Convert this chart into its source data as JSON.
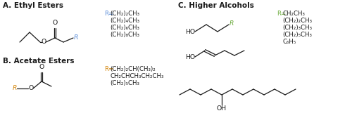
{
  "bg_color": "#ffffff",
  "title_A": "A. Ethyl Esters",
  "title_B": "B. Acetate Esters",
  "title_C": "C. Higher Alcohols",
  "title_fontsize": 7.5,
  "label_fontsize": 6.2,
  "R_color_blue": "#5b8dd9",
  "R_color_orange": "#d4860b",
  "R_color_green": "#6aaa3a",
  "black": "#1a1a1a",
  "ethyl_R_line1_R": "R=",
  "ethyl_R_line1_rest": "(CH₂)₂CH₃",
  "ethyl_R_lines": [
    "(CH₂)₄CH₃",
    "(CH₂)₆CH₃",
    "(CH₂)₈CH₃"
  ],
  "acetate_R_line1_R": "R=",
  "acetate_R_line1_rest": "(CH₂)₂CH(CH₃)₂",
  "acetate_R_lines": [
    "CH₂CHCH₃CH₂CH₃",
    "(CH₂)₅CH₃"
  ],
  "alcohol_R_line1_R": "R=",
  "alcohol_R_line1_rest": "CH₂CH₃",
  "alcohol_R_lines": [
    "(CH₂)₂CH₃",
    "(CH₂)₃CH₃",
    "(CH₂)₅CH₃",
    "C₆H₅"
  ]
}
